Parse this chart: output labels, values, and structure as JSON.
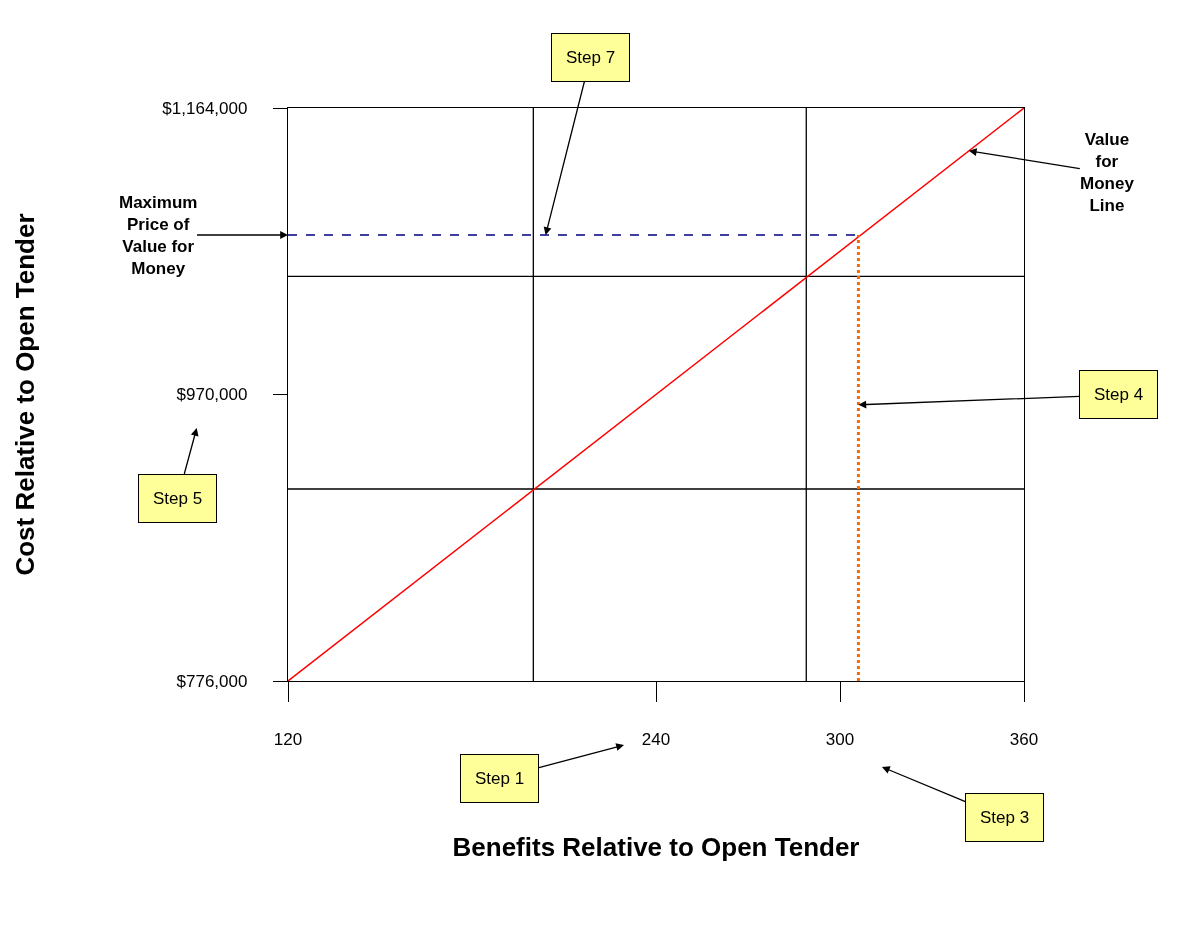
{
  "chart_data": {
    "type": "line",
    "xlabel": "Benefits Relative to Open Tender",
    "ylabel": "Cost Relative to Open Tender",
    "xlim": [
      120,
      360
    ],
    "xticks": [
      120,
      240,
      300,
      360
    ],
    "ylim": [
      776000,
      1164000
    ],
    "yticks": [
      {
        "value": 776000,
        "label": "$776,000"
      },
      {
        "value": 970000,
        "label": "$970,000"
      },
      {
        "value": 1164000,
        "label": "$1,164,000"
      }
    ],
    "series": [
      {
        "color": "#ff0000",
        "x": [
          120,
          360
        ],
        "values": [
          776000,
          1164000
        ],
        "line_style": "solid"
      },
      {
        "color": "#000080",
        "x": [
          120,
          306
        ],
        "values": [
          1078000,
          1078000
        ],
        "line_style": "dashed"
      },
      {
        "color": "#ff6600",
        "x": [
          306,
          306
        ],
        "values": [
          776000,
          1078000
        ],
        "line_style": "dotted"
      }
    ],
    "ref_lines": [
      {
        "axis": "x",
        "value": 200,
        "color": "#000000"
      },
      {
        "axis": "x",
        "value": 289,
        "color": "#000000"
      },
      {
        "axis": "y",
        "value": 906000,
        "color": "#000000"
      },
      {
        "axis": "y",
        "value": 1050000,
        "color": "#000000"
      }
    ],
    "annotations": [
      {
        "text": "Maximum\nPrice of\nValue for\nMoney",
        "x": 120,
        "y": 1078000
      },
      {
        "text": "Step 7",
        "x": 204,
        "y": 1078000
      },
      {
        "text": "Value\nfor\nMoney\nLine",
        "x": 342,
        "y": 1135000
      },
      {
        "text": "Step 4",
        "x": 306,
        "y": 963000
      },
      "Step 5",
      "Step 1",
      "Step 3"
    ],
    "grid": false,
    "marker": "none"
  }
}
